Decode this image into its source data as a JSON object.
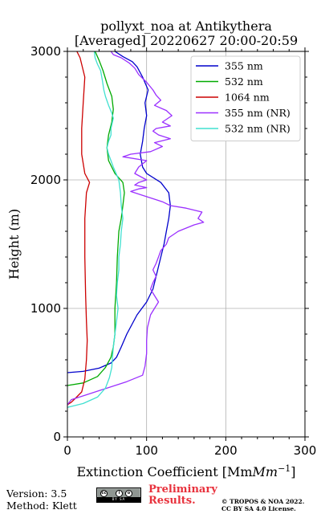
{
  "title": {
    "line1": "pollyxt_noa at Antikythera",
    "line2": "[Averaged] 20220627 20:00-20:59"
  },
  "footer": {
    "version": "Version: 3.5",
    "method": "Method: Klett",
    "preliminary_line1": "Preliminary",
    "preliminary_line2": "Results.",
    "copyright_line1": "© TROPOS & NOA 2022.",
    "copyright_line2": "CC BY SA 4.0 License.",
    "badge": {
      "label": "cc-by-sa-license-badge",
      "strip_text": "BY SA",
      "circle_1": "cc",
      "circle_2": "i",
      "circle_3": "o"
    }
  },
  "chart_data": {
    "type": "line",
    "xlabel": "Extinction Coefficient [Mm",
    "xlabel_sup": "−1",
    "xlabel_close": "]",
    "ylabel": "Height (m)",
    "xlim": [
      0,
      300
    ],
    "ylim": [
      0,
      3000
    ],
    "x_ticks": [
      0,
      100,
      200,
      300
    ],
    "y_ticks": [
      0,
      1000,
      2000,
      3000
    ],
    "grid": true,
    "legend_position": "top-right",
    "series": [
      {
        "name": "355 nm",
        "color": "#0000cc",
        "points": [
          [
            0,
            500
          ],
          [
            20,
            510
          ],
          [
            40,
            535
          ],
          [
            55,
            575
          ],
          [
            62,
            620
          ],
          [
            68,
            700
          ],
          [
            75,
            800
          ],
          [
            88,
            950
          ],
          [
            100,
            1050
          ],
          [
            108,
            1150
          ],
          [
            114,
            1300
          ],
          [
            118,
            1400
          ],
          [
            122,
            1500
          ],
          [
            125,
            1600
          ],
          [
            128,
            1700
          ],
          [
            130,
            1800
          ],
          [
            128,
            1900
          ],
          [
            118,
            1980
          ],
          [
            100,
            2050
          ],
          [
            95,
            2100
          ],
          [
            92,
            2200
          ],
          [
            95,
            2300
          ],
          [
            97,
            2400
          ],
          [
            100,
            2500
          ],
          [
            98,
            2600
          ],
          [
            102,
            2700
          ],
          [
            95,
            2800
          ],
          [
            88,
            2880
          ],
          [
            82,
            2920
          ],
          [
            70,
            2960
          ],
          [
            60,
            3000
          ]
        ]
      },
      {
        "name": "532 nm",
        "color": "#00aa00",
        "points": [
          [
            0,
            400
          ],
          [
            20,
            420
          ],
          [
            38,
            470
          ],
          [
            48,
            540
          ],
          [
            55,
            620
          ],
          [
            58,
            700
          ],
          [
            60,
            800
          ],
          [
            60,
            1000
          ],
          [
            62,
            1200
          ],
          [
            63,
            1400
          ],
          [
            65,
            1600
          ],
          [
            68,
            1700
          ],
          [
            70,
            1800
          ],
          [
            72,
            1900
          ],
          [
            70,
            1980
          ],
          [
            60,
            2050
          ],
          [
            52,
            2150
          ],
          [
            50,
            2250
          ],
          [
            52,
            2350
          ],
          [
            56,
            2450
          ],
          [
            58,
            2550
          ],
          [
            56,
            2650
          ],
          [
            50,
            2750
          ],
          [
            45,
            2850
          ],
          [
            40,
            2930
          ],
          [
            35,
            3000
          ]
        ]
      },
      {
        "name": "1064 nm",
        "color": "#cc0000",
        "points": [
          [
            0,
            250
          ],
          [
            5,
            270
          ],
          [
            10,
            300
          ],
          [
            18,
            350
          ],
          [
            22,
            450
          ],
          [
            24,
            600
          ],
          [
            25,
            750
          ],
          [
            24,
            900
          ],
          [
            23,
            1100
          ],
          [
            22,
            1400
          ],
          [
            22,
            1700
          ],
          [
            24,
            1900
          ],
          [
            28,
            1980
          ],
          [
            22,
            2050
          ],
          [
            18,
            2200
          ],
          [
            18,
            2400
          ],
          [
            20,
            2600
          ],
          [
            22,
            2800
          ],
          [
            16,
            2950
          ],
          [
            12,
            3000
          ]
        ]
      },
      {
        "name": "355 nm (NR)",
        "color": "#9b30ff",
        "points": [
          [
            0,
            250
          ],
          [
            5,
            290
          ],
          [
            25,
            330
          ],
          [
            50,
            380
          ],
          [
            75,
            430
          ],
          [
            95,
            480
          ],
          [
            98,
            550
          ],
          [
            100,
            650
          ],
          [
            100,
            750
          ],
          [
            101,
            850
          ],
          [
            105,
            950
          ],
          [
            110,
            1000
          ],
          [
            115,
            1050
          ],
          [
            110,
            1100
          ],
          [
            105,
            1150
          ],
          [
            108,
            1200
          ],
          [
            112,
            1250
          ],
          [
            108,
            1300
          ],
          [
            112,
            1350
          ],
          [
            115,
            1400
          ],
          [
            118,
            1450
          ],
          [
            125,
            1500
          ],
          [
            128,
            1550
          ],
          [
            140,
            1600
          ],
          [
            160,
            1650
          ],
          [
            172,
            1670
          ],
          [
            165,
            1700
          ],
          [
            170,
            1750
          ],
          [
            150,
            1780
          ],
          [
            130,
            1800
          ],
          [
            120,
            1830
          ],
          [
            110,
            1850
          ],
          [
            95,
            1880
          ],
          [
            80,
            1910
          ],
          [
            90,
            1930
          ],
          [
            100,
            1940
          ],
          [
            85,
            1960
          ],
          [
            90,
            1980
          ],
          [
            100,
            2000
          ],
          [
            85,
            2050
          ],
          [
            90,
            2100
          ],
          [
            100,
            2150
          ],
          [
            70,
            2180
          ],
          [
            80,
            2200
          ],
          [
            105,
            2220
          ],
          [
            120,
            2260
          ],
          [
            110,
            2290
          ],
          [
            130,
            2320
          ],
          [
            115,
            2350
          ],
          [
            108,
            2380
          ],
          [
            112,
            2400
          ],
          [
            130,
            2420
          ],
          [
            120,
            2450
          ],
          [
            132,
            2500
          ],
          [
            125,
            2540
          ],
          [
            110,
            2580
          ],
          [
            118,
            2620
          ],
          [
            112,
            2660
          ],
          [
            108,
            2700
          ],
          [
            100,
            2760
          ],
          [
            90,
            2820
          ],
          [
            85,
            2870
          ],
          [
            78,
            2910
          ],
          [
            68,
            2950
          ],
          [
            58,
            2975
          ],
          [
            55,
            3000
          ]
        ]
      },
      {
        "name": "532 nm (NR)",
        "color": "#40e0d0",
        "points": [
          [
            0,
            230
          ],
          [
            20,
            260
          ],
          [
            38,
            310
          ],
          [
            48,
            380
          ],
          [
            53,
            460
          ],
          [
            56,
            540
          ],
          [
            57,
            620
          ],
          [
            58,
            700
          ],
          [
            60,
            800
          ],
          [
            62,
            900
          ],
          [
            64,
            1000
          ],
          [
            62,
            1100
          ],
          [
            63,
            1200
          ],
          [
            65,
            1300
          ],
          [
            65,
            1400
          ],
          [
            67,
            1500
          ],
          [
            68,
            1600
          ],
          [
            70,
            1700
          ],
          [
            68,
            1800
          ],
          [
            67,
            1900
          ],
          [
            65,
            2000
          ],
          [
            58,
            2100
          ],
          [
            52,
            2200
          ],
          [
            50,
            2250
          ],
          [
            52,
            2300
          ],
          [
            55,
            2350
          ],
          [
            55,
            2400
          ],
          [
            58,
            2480
          ],
          [
            56,
            2520
          ],
          [
            52,
            2580
          ],
          [
            48,
            2650
          ],
          [
            46,
            2700
          ],
          [
            44,
            2780
          ],
          [
            42,
            2850
          ],
          [
            38,
            2900
          ],
          [
            35,
            2950
          ],
          [
            34,
            3000
          ]
        ]
      }
    ]
  }
}
